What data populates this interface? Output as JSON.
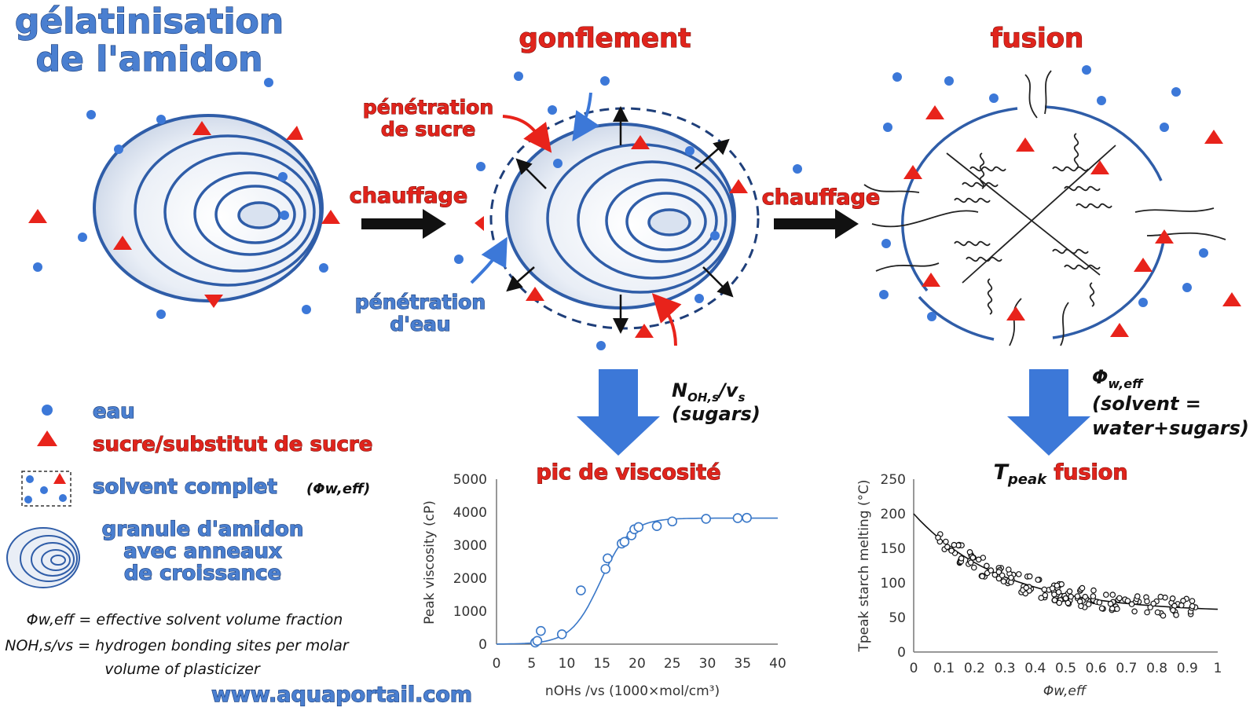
{
  "title": {
    "line1": "gélatinisation",
    "line2": "de l'amidon"
  },
  "stages": {
    "swelling": "gonflement",
    "melting": "fusion"
  },
  "arrows": {
    "heating1": "chauffage",
    "heating2": "chauffage"
  },
  "annotations": {
    "sugar_penetration": [
      "pénétration",
      "de sucre"
    ],
    "water_penetration": [
      "pénétration",
      "d'eau"
    ],
    "noh_label": {
      "main": "N",
      "sub": "OH,s",
      "rest": "/v",
      "rest_sub": "s",
      "line2": "(sugars)"
    },
    "phi_label": {
      "main": "Φ",
      "sub": "w,eff",
      "line2": "(solvent =",
      "line3": "water+sugars)"
    },
    "peak_viscosity": "pic de viscosité",
    "tpeak_fusion": {
      "main": "T",
      "sub": "peak",
      "rest": " fusion"
    }
  },
  "legend": {
    "water": "eau",
    "sugar": "sucre/substitut de sucre",
    "solvent": "solvent complet",
    "solvent_symbol": "(Φw,eff)",
    "granule": [
      "granule d'amidon",
      "avec anneaux",
      "de croissance"
    ]
  },
  "definitions": {
    "phi": "Φw,eff = effective solvent volume fraction",
    "noh_line1": "NOH,s/vs = hydrogen bonding sites per molar",
    "noh_line2": "volume of plasticizer"
  },
  "website": "www.aquaportail.com",
  "colors": {
    "water": "#3c78d8",
    "sugar": "#e8231b",
    "granule_stroke": "#2f5da8",
    "chart_stroke": "#3a78c8"
  },
  "chart_data": [
    {
      "type": "scatter",
      "title": "pic de viscosité",
      "xlabel": "nOHs /vs (1000×mol/cm³)",
      "ylabel": "Peak viscosity (cP)",
      "xlim": [
        0,
        40
      ],
      "ylim": [
        0,
        5000
      ],
      "xticks": [
        "0",
        "5",
        "10",
        "15",
        "20",
        "25",
        "30",
        "35",
        "40"
      ],
      "yticks": [
        "0",
        "1000",
        "2000",
        "3000",
        "4000",
        "5000"
      ],
      "points": [
        [
          5.5,
          50
        ],
        [
          5.8,
          100
        ],
        [
          6.3,
          400
        ],
        [
          9.3,
          300
        ],
        [
          12,
          1630
        ],
        [
          15.5,
          2280
        ],
        [
          15.8,
          2600
        ],
        [
          17.8,
          3050
        ],
        [
          18.2,
          3100
        ],
        [
          19.2,
          3300
        ],
        [
          19.6,
          3480
        ],
        [
          20.2,
          3550
        ],
        [
          22.8,
          3580
        ],
        [
          25,
          3720
        ],
        [
          29.8,
          3800
        ],
        [
          34.3,
          3820
        ],
        [
          35.6,
          3830
        ]
      ],
      "fit_curve": "sigmoid"
    },
    {
      "type": "scatter",
      "title": "Tpeak fusion",
      "xlabel": "Φw,eff",
      "ylabel": "Tpeak starch melting (°C)",
      "xlim": [
        0,
        1
      ],
      "ylim": [
        0,
        250
      ],
      "xticks": [
        "0",
        "0.1",
        "0.2",
        "0.3",
        "0.4",
        "0.5",
        "0.6",
        "0.7",
        "0.8",
        "0.9",
        "1"
      ],
      "yticks": [
        "0",
        "50",
        "100",
        "150",
        "200",
        "250"
      ],
      "points_trend": "decreasing from ~160 °C at 0.08 to ~60 °C at 0.95",
      "fit_curve": "exponential decay from 200 at 0 to 57 at 1"
    }
  ]
}
